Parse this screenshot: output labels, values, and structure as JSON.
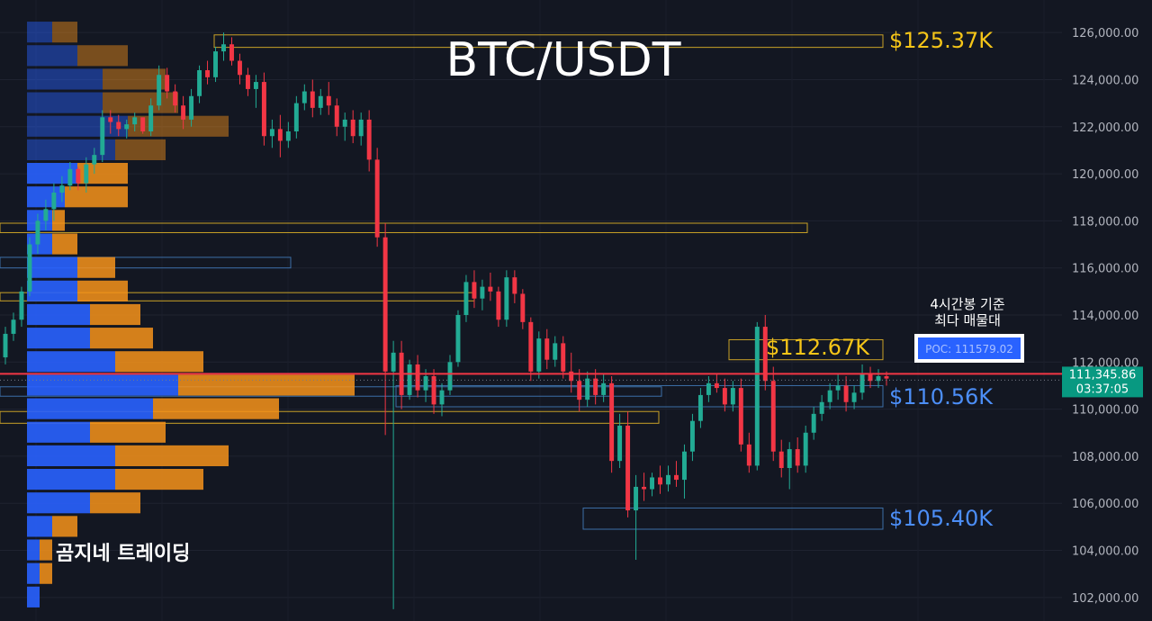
{
  "chart_data": {
    "type": "candlestick",
    "title": "BTC/USDT",
    "watermark": "곰지네 트레이딩",
    "ylim": [
      101000,
      127000
    ],
    "y_ticks": [
      "126,000.00",
      "124,000.00",
      "122,000.00",
      "120,000.00",
      "118,000.00",
      "116,000.00",
      "114,000.00",
      "112,000.00",
      "110,000.00",
      "108,000.00",
      "106,000.00",
      "104,000.00",
      "102,000.00"
    ],
    "y_tick_values": [
      126000,
      124000,
      122000,
      120000,
      118000,
      116000,
      114000,
      112000,
      110000,
      108000,
      106000,
      104000,
      102000
    ],
    "last_price": {
      "value": 111345.86,
      "label": "111,345.86",
      "countdown": "03:37:05"
    },
    "poc": {
      "label": "POC: 111579.02",
      "value": 111579.02,
      "note_line1": "4시간봉 기준",
      "note_line2": "최다 매물대"
    },
    "levels": [
      {
        "label": "$125.37K",
        "price": 125370,
        "color": "#f5c518",
        "band": [
          125370,
          125900
        ]
      },
      {
        "label": "$112.67K",
        "price": 112670,
        "color": "#f5c518",
        "band": [
          112100,
          112950
        ]
      },
      {
        "label": "$110.56K",
        "price": 110560,
        "color": "#4c8ef7",
        "band": [
          110100,
          111000
        ]
      },
      {
        "label": "$105.40K",
        "price": 105400,
        "color": "#4c8ef7",
        "band": [
          104900,
          105800
        ]
      }
    ],
    "zones": [
      {
        "color": "#c9a227",
        "band": [
          117500,
          117900
        ]
      },
      {
        "color": "#3c6fa8",
        "band": [
          116000,
          116450
        ]
      },
      {
        "color": "#c9a227",
        "band": [
          114600,
          114950
        ]
      },
      {
        "color": "#c9a227",
        "band": [
          109400,
          109900
        ]
      },
      {
        "color": "#3c6fa8",
        "band": [
          110550,
          110950
        ]
      }
    ],
    "volume_profile": {
      "row_height_price": 1000,
      "buy_color": "#2962ff",
      "sell_color": "#f7931a",
      "rows": [
        {
          "price": 126000,
          "buy": 2,
          "sell": 2
        },
        {
          "price": 125000,
          "buy": 4,
          "sell": 4
        },
        {
          "price": 124000,
          "buy": 6,
          "sell": 5
        },
        {
          "price": 123000,
          "buy": 6,
          "sell": 6
        },
        {
          "price": 122000,
          "buy": 8,
          "sell": 8
        },
        {
          "price": 121000,
          "buy": 7,
          "sell": 4
        },
        {
          "price": 120000,
          "buy": 4,
          "sell": 4
        },
        {
          "price": 119000,
          "buy": 3,
          "sell": 5
        },
        {
          "price": 118000,
          "buy": 2,
          "sell": 1
        },
        {
          "price": 117000,
          "buy": 2,
          "sell": 2
        },
        {
          "price": 116000,
          "buy": 4,
          "sell": 3
        },
        {
          "price": 115000,
          "buy": 4,
          "sell": 4
        },
        {
          "price": 114000,
          "buy": 5,
          "sell": 4
        },
        {
          "price": 113000,
          "buy": 5,
          "sell": 5
        },
        {
          "price": 112000,
          "buy": 7,
          "sell": 7
        },
        {
          "price": 111000,
          "buy": 12,
          "sell": 14
        },
        {
          "price": 110000,
          "buy": 10,
          "sell": 10
        },
        {
          "price": 109000,
          "buy": 5,
          "sell": 6
        },
        {
          "price": 108000,
          "buy": 7,
          "sell": 9
        },
        {
          "price": 107000,
          "buy": 7,
          "sell": 7
        },
        {
          "price": 106000,
          "buy": 5,
          "sell": 4
        },
        {
          "price": 105000,
          "buy": 2,
          "sell": 2
        },
        {
          "price": 104000,
          "buy": 1,
          "sell": 1
        },
        {
          "price": 103000,
          "buy": 1,
          "sell": 1
        },
        {
          "price": 102000,
          "buy": 1,
          "sell": 0
        }
      ]
    },
    "candles": [
      [
        112200,
        113500,
        111900,
        113200
      ],
      [
        113200,
        114100,
        112900,
        113800
      ],
      [
        113800,
        115200,
        113500,
        115000
      ],
      [
        115000,
        117300,
        114800,
        117000
      ],
      [
        117000,
        118300,
        116600,
        118000
      ],
      [
        118000,
        118900,
        117600,
        118500
      ],
      [
        118500,
        119600,
        118000,
        119200
      ],
      [
        119200,
        119900,
        118800,
        119500
      ],
      [
        119500,
        120500,
        119300,
        120200
      ],
      [
        120200,
        120300,
        119300,
        119600
      ],
      [
        119600,
        120700,
        119200,
        120400
      ],
      [
        120400,
        121100,
        120000,
        120800
      ],
      [
        120800,
        122700,
        120500,
        122400
      ],
      [
        122400,
        122700,
        121700,
        122200
      ],
      [
        122200,
        122500,
        121600,
        121900
      ],
      [
        121900,
        122300,
        121500,
        122100
      ],
      [
        122100,
        122600,
        121800,
        122400
      ],
      [
        122400,
        122300,
        121700,
        121800
      ],
      [
        121800,
        123200,
        121600,
        122900
      ],
      [
        122900,
        124600,
        122700,
        124200
      ],
      [
        124200,
        124500,
        123200,
        123500
      ],
      [
        123500,
        123800,
        122600,
        122900
      ],
      [
        122900,
        123300,
        121900,
        122300
      ],
      [
        122300,
        123600,
        122000,
        123300
      ],
      [
        123300,
        124600,
        123000,
        124400
      ],
      [
        124400,
        124800,
        123800,
        124100
      ],
      [
        124100,
        125400,
        123900,
        125200
      ],
      [
        125200,
        126000,
        124800,
        125500
      ],
      [
        125500,
        125800,
        124600,
        124800
      ],
      [
        124800,
        125100,
        123800,
        124200
      ],
      [
        124200,
        124500,
        123300,
        123600
      ],
      [
        123600,
        124200,
        122800,
        123900
      ],
      [
        123900,
        124300,
        121200,
        121600
      ],
      [
        121600,
        122300,
        121100,
        121900
      ],
      [
        121900,
        122500,
        120700,
        121400
      ],
      [
        121400,
        122200,
        121100,
        121800
      ],
      [
        121800,
        123300,
        121500,
        123000
      ],
      [
        123000,
        123800,
        122700,
        123500
      ],
      [
        123500,
        124000,
        122400,
        122800
      ],
      [
        122800,
        123600,
        122500,
        123300
      ],
      [
        123300,
        123900,
        122500,
        122900
      ],
      [
        122900,
        123200,
        121600,
        122000
      ],
      [
        122000,
        122600,
        121400,
        122300
      ],
      [
        122300,
        122700,
        121300,
        121600
      ],
      [
        121600,
        122600,
        121200,
        122300
      ],
      [
        122300,
        122700,
        120100,
        120600
      ],
      [
        120600,
        121100,
        116900,
        117300
      ],
      [
        117300,
        117900,
        108900,
        111600
      ],
      [
        111600,
        112900,
        101500,
        112400
      ],
      [
        112400,
        112900,
        110000,
        110600
      ],
      [
        110600,
        112100,
        110400,
        111900
      ],
      [
        111900,
        112300,
        110500,
        110800
      ],
      [
        110800,
        111700,
        110300,
        111400
      ],
      [
        111400,
        111700,
        109800,
        110200
      ],
      [
        110200,
        111100,
        109700,
        110800
      ],
      [
        110800,
        112300,
        110600,
        112000
      ],
      [
        112000,
        114200,
        111800,
        114000
      ],
      [
        114000,
        115700,
        113700,
        115400
      ],
      [
        115400,
        115900,
        114300,
        114700
      ],
      [
        114700,
        115500,
        114200,
        115200
      ],
      [
        115200,
        115800,
        114600,
        115000
      ],
      [
        115000,
        115200,
        113500,
        113800
      ],
      [
        113800,
        115900,
        113500,
        115600
      ],
      [
        115600,
        115900,
        114500,
        114900
      ],
      [
        114900,
        115100,
        113400,
        113700
      ],
      [
        113700,
        113900,
        111200,
        111600
      ],
      [
        111600,
        113300,
        111300,
        113000
      ],
      [
        113000,
        113400,
        111700,
        112100
      ],
      [
        112100,
        113100,
        111800,
        112800
      ],
      [
        112800,
        113100,
        111300,
        111600
      ],
      [
        111600,
        112400,
        110700,
        111200
      ],
      [
        111200,
        111700,
        109900,
        110400
      ],
      [
        110400,
        111600,
        110100,
        111300
      ],
      [
        111300,
        111700,
        110200,
        110600
      ],
      [
        110600,
        111500,
        110300,
        111100
      ],
      [
        111100,
        111400,
        107300,
        107800
      ],
      [
        107800,
        109800,
        107500,
        109300
      ],
      [
        109300,
        109900,
        105400,
        105700
      ],
      [
        105700,
        107200,
        103600,
        106700
      ],
      [
        106700,
        107300,
        106100,
        106600
      ],
      [
        106600,
        107300,
        106300,
        107100
      ],
      [
        107100,
        107600,
        106400,
        106800
      ],
      [
        106800,
        107600,
        106500,
        107200
      ],
      [
        107200,
        107800,
        106700,
        107000
      ],
      [
        107000,
        108500,
        106200,
        108200
      ],
      [
        108200,
        109800,
        107800,
        109500
      ],
      [
        109500,
        110900,
        109200,
        110600
      ],
      [
        110600,
        111400,
        110300,
        111100
      ],
      [
        111100,
        111500,
        110700,
        110900
      ],
      [
        110900,
        111300,
        109900,
        110200
      ],
      [
        110200,
        111200,
        109900,
        110900
      ],
      [
        110900,
        111300,
        108200,
        108500
      ],
      [
        108500,
        109000,
        107300,
        107600
      ],
      [
        107600,
        113700,
        107400,
        113500
      ],
      [
        113500,
        114000,
        110800,
        111200
      ],
      [
        111200,
        111800,
        107800,
        108200
      ],
      [
        108200,
        108700,
        107100,
        107500
      ],
      [
        107500,
        108600,
        106600,
        108300
      ],
      [
        108300,
        108800,
        107300,
        107600
      ],
      [
        107600,
        109300,
        107300,
        109000
      ],
      [
        109000,
        110100,
        108700,
        109800
      ],
      [
        109800,
        110600,
        109500,
        110300
      ],
      [
        110300,
        111100,
        110000,
        110800
      ],
      [
        110800,
        111500,
        110400,
        111000
      ],
      [
        111000,
        111400,
        109900,
        110300
      ],
      [
        110300,
        111000,
        110000,
        110700
      ],
      [
        110700,
        111900,
        110400,
        111500
      ],
      [
        111500,
        111800,
        110900,
        111200
      ],
      [
        111200,
        111700,
        110900,
        111400
      ],
      [
        111400,
        111600,
        111000,
        111300
      ]
    ]
  }
}
